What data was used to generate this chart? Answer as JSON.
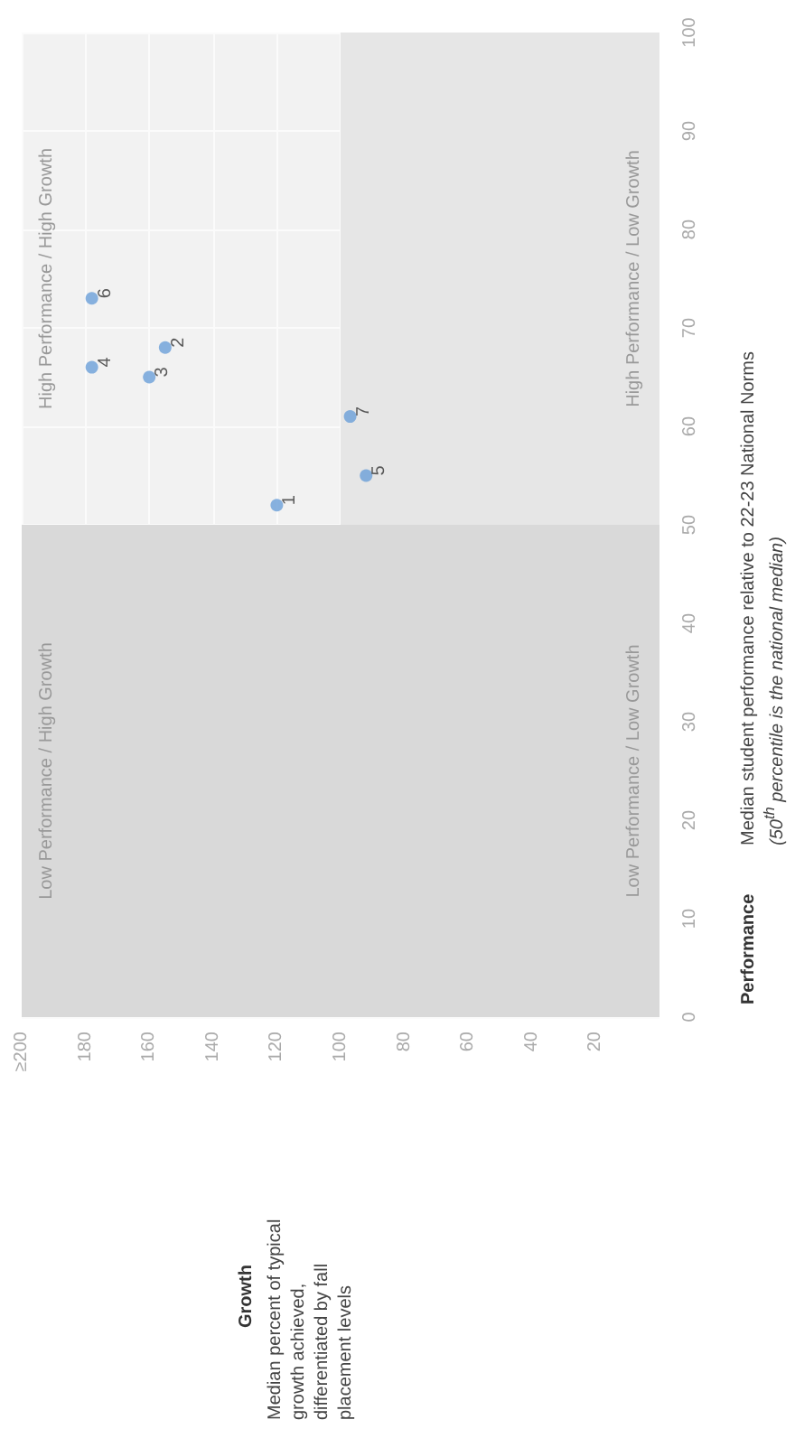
{
  "chart_data": {
    "type": "scatter",
    "ylabel": "Performance",
    "xlim": [
      200,
      0
    ],
    "xticks": [
      {
        "value": 200,
        "label": "≥200"
      },
      180,
      160,
      140,
      120,
      100,
      80,
      60,
      40,
      20
    ],
    "ylim": [
      0,
      100
    ],
    "yticks": [
      0,
      10,
      20,
      30,
      40,
      50,
      60,
      70,
      80,
      90,
      100
    ],
    "grid": true,
    "marker": "circle",
    "bands": [
      {
        "axis": "x",
        "from": 0,
        "to": 100,
        "color": "#e6e6e6"
      },
      {
        "axis": "y",
        "from": 0,
        "to": 50,
        "color": "#d9d9d9"
      }
    ],
    "series": [
      {
        "name": "1",
        "color": "#6a9fd8",
        "x": [
          120
        ],
        "values": [
          52
        ]
      },
      {
        "name": "2",
        "color": "#6a9fd8",
        "x": [
          155
        ],
        "values": [
          68
        ]
      },
      {
        "name": "3",
        "color": "#6a9fd8",
        "x": [
          160
        ],
        "values": [
          65
        ]
      },
      {
        "name": "4",
        "color": "#6a9fd8",
        "x": [
          178
        ],
        "values": [
          66
        ]
      },
      {
        "name": "5",
        "color": "#6a9fd8",
        "x": [
          92
        ],
        "values": [
          55
        ]
      },
      {
        "name": "6",
        "color": "#6a9fd8",
        "x": [
          178
        ],
        "values": [
          73
        ]
      },
      {
        "name": "7",
        "color": "#6a9fd8",
        "x": [
          97
        ],
        "values": [
          61
        ]
      }
    ],
    "annotations": [
      "Low Performance / High Growth",
      "High Performance / High Growth",
      "Low Performance / Low Growth",
      "High Performance / Low Growth",
      "Median percent of typical growth achieved, differentiated by fall placement levels",
      "Median student performance relative to 22-23 National Norms",
      "(50$^{th}$ percentile is the national median)",
      "Growth"
    ]
  }
}
